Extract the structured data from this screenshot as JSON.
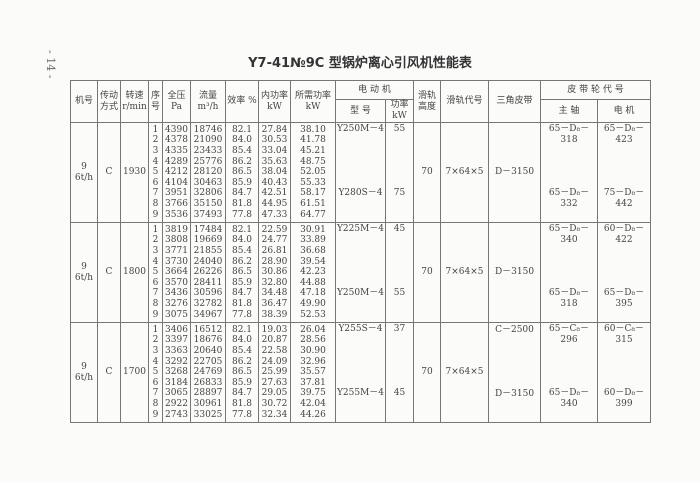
{
  "page_number": "- 14 -",
  "title": "Y7-41№9C 型锅炉离心引风机性能表",
  "headers": {
    "fan_no": "机号",
    "drive": "传动方式",
    "speed": "转速 r/min",
    "seq": "序号",
    "pressure": "全压 Pa",
    "flow": "流量 m³/h",
    "efficiency": "效率 %",
    "internal_power": "内功率 kW",
    "required_power": "所需功率 kW",
    "motor": "电 动 机",
    "motor_model": "型 号",
    "motor_power": "功率 kW",
    "rail_height": "滑轨高度",
    "rail_code": "滑轨代号",
    "v_belt": "三角皮带",
    "pulley": "皮 带 轮 代 号",
    "main_shaft": "主 轴",
    "motor_pulley": "电 机"
  },
  "groups": [
    {
      "fan_no": "9",
      "capacity": "6t/h",
      "drive": "C",
      "speed": "1930",
      "seq": [
        "1",
        "2",
        "3",
        "4",
        "5",
        "6",
        "7",
        "8",
        "9"
      ],
      "pressure": [
        "4390",
        "4378",
        "4335",
        "4289",
        "4212",
        "4104",
        "3951",
        "3766",
        "3536"
      ],
      "flow": [
        "18746",
        "21090",
        "23433",
        "25776",
        "28120",
        "30463",
        "32806",
        "35150",
        "37493"
      ],
      "efficiency": [
        "82.1",
        "84.0",
        "85.4",
        "86.2",
        "86.5",
        "85.9",
        "84.7",
        "81.8",
        "77.8"
      ],
      "internal_power": [
        "27.84",
        "30.53",
        "33.04",
        "35.63",
        "38.04",
        "40.43",
        "42.51",
        "44.95",
        "47.33"
      ],
      "required_power": [
        "38.10",
        "41.78",
        "45.21",
        "48.75",
        "52.05",
        "55.33",
        "58.17",
        "61.51",
        "64.77"
      ],
      "motors": [
        {
          "model": "Y250M－4",
          "power": "55"
        },
        {
          "model": "Y280S－4",
          "power": "75"
        }
      ],
      "rail_height": "70",
      "rail_code": "7×64×5",
      "belts": [
        "D－3150"
      ],
      "main_shaft": [
        "65－D₈－318",
        "65－D₈－332"
      ],
      "motor_pulley": [
        "65－D₈－423",
        "75－D₈－442"
      ]
    },
    {
      "fan_no": "9",
      "capacity": "6t/h",
      "drive": "C",
      "speed": "1800",
      "seq": [
        "1",
        "2",
        "3",
        "4",
        "5",
        "6",
        "7",
        "8",
        "9"
      ],
      "pressure": [
        "3819",
        "3808",
        "3771",
        "3730",
        "3664",
        "3570",
        "3436",
        "3276",
        "3075"
      ],
      "flow": [
        "17484",
        "19669",
        "21855",
        "24040",
        "26226",
        "28411",
        "30596",
        "32782",
        "34967"
      ],
      "efficiency": [
        "82.1",
        "84.0",
        "85.4",
        "86.2",
        "86.5",
        "85.9",
        "84.7",
        "81.8",
        "77.8"
      ],
      "internal_power": [
        "22.59",
        "24.77",
        "26.81",
        "28.90",
        "30.86",
        "32.80",
        "34.48",
        "36.47",
        "38.39"
      ],
      "required_power": [
        "30.91",
        "33.89",
        "36.68",
        "39.54",
        "42.23",
        "44.88",
        "47.18",
        "49.90",
        "52.53"
      ],
      "motors": [
        {
          "model": "Y225M－4",
          "power": "45"
        },
        {
          "model": "Y250M－4",
          "power": "55"
        }
      ],
      "rail_height": "70",
      "rail_code": "7×64×5",
      "belts": [
        "D－3150"
      ],
      "main_shaft": [
        "65－D₈－340",
        "65－D₈－318"
      ],
      "motor_pulley": [
        "60－D₈－422",
        "65－D₈－395"
      ]
    },
    {
      "fan_no": "9",
      "capacity": "6t/h",
      "drive": "C",
      "speed": "1700",
      "seq": [
        "1",
        "2",
        "3",
        "4",
        "5",
        "6",
        "7",
        "8",
        "9"
      ],
      "pressure": [
        "3406",
        "3397",
        "3363",
        "3292",
        "3268",
        "3184",
        "3065",
        "2922",
        "2743"
      ],
      "flow": [
        "16512",
        "18676",
        "20640",
        "22705",
        "24769",
        "26833",
        "28897",
        "30961",
        "33025"
      ],
      "efficiency": [
        "82.1",
        "84.0",
        "85.4",
        "86.2",
        "86.5",
        "85.9",
        "84.7",
        "81.8",
        "77.8"
      ],
      "internal_power": [
        "19.03",
        "20.87",
        "22.58",
        "24.09",
        "25.99",
        "27.63",
        "29.05",
        "30.72",
        "32.34"
      ],
      "required_power": [
        "26.04",
        "28.56",
        "30.90",
        "32.96",
        "35.57",
        "37.81",
        "39.75",
        "42.04",
        "44.26"
      ],
      "motors": [
        {
          "model": "Y255S－4",
          "power": "37"
        },
        {
          "model": "Y255M－4",
          "power": "45"
        }
      ],
      "rail_height": "70",
      "rail_code": "7×64×5",
      "belts": [
        "C－2500",
        "D－3150"
      ],
      "main_shaft": [
        "65－C₈－296",
        "65－D₈－340"
      ],
      "motor_pulley": [
        "60－C₈－315",
        "60－D₈－399"
      ]
    }
  ]
}
